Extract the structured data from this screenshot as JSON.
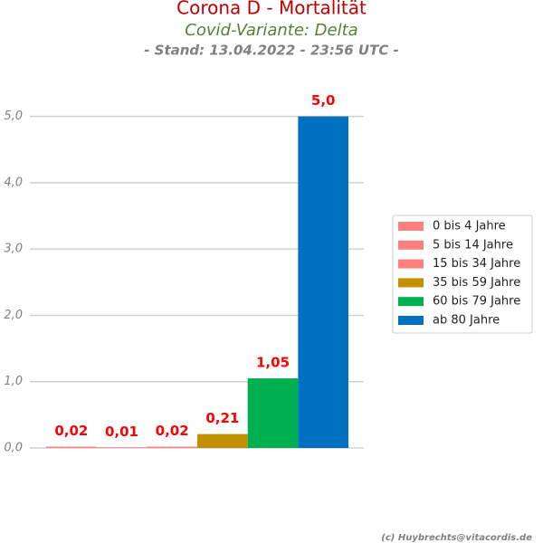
{
  "chart_data": {
    "type": "bar",
    "title": "Corona D - Mortalität",
    "subtitle": "Covid-Variante: Delta",
    "date_note": "- Stand: 13.04.2022 - 23:56 UTC -",
    "footer": "(c) Huybrechts@vitacordis.de",
    "series": [
      {
        "name": "0 bis 4 Jahre",
        "color": "#ff7f7f",
        "values": [
          0.02
        ],
        "value_labels": [
          "0,02"
        ]
      },
      {
        "name": "5 bis 14 Jahre",
        "color": "#ff7f7f",
        "values": [
          0.01
        ],
        "value_labels": [
          "0,01"
        ]
      },
      {
        "name": "15 bis 34 Jahre",
        "color": "#ff7f7f",
        "values": [
          0.02
        ],
        "value_labels": [
          "0,02"
        ]
      },
      {
        "name": "35 bis 59 Jahre",
        "color": "#c49000",
        "values": [
          0.21
        ],
        "value_labels": [
          "0,21"
        ]
      },
      {
        "name": "60 bis 79 Jahre",
        "color": "#00b050",
        "values": [
          1.05
        ],
        "value_labels": [
          "1,05"
        ]
      },
      {
        "name": "ab 80 Jahre",
        "color": "#0070c0",
        "values": [
          5.0
        ],
        "value_labels": [
          "5,0"
        ]
      }
    ],
    "ylim": [
      0,
      5.5
    ],
    "yticks": [
      {
        "value": 0,
        "label": "0,0"
      },
      {
        "value": 1,
        "label": "1,0"
      },
      {
        "value": 2,
        "label": "2,0"
      },
      {
        "value": 3,
        "label": "3,0"
      },
      {
        "value": 4,
        "label": "4,0"
      },
      {
        "value": 5,
        "label": "5,0"
      }
    ],
    "grid": true
  }
}
